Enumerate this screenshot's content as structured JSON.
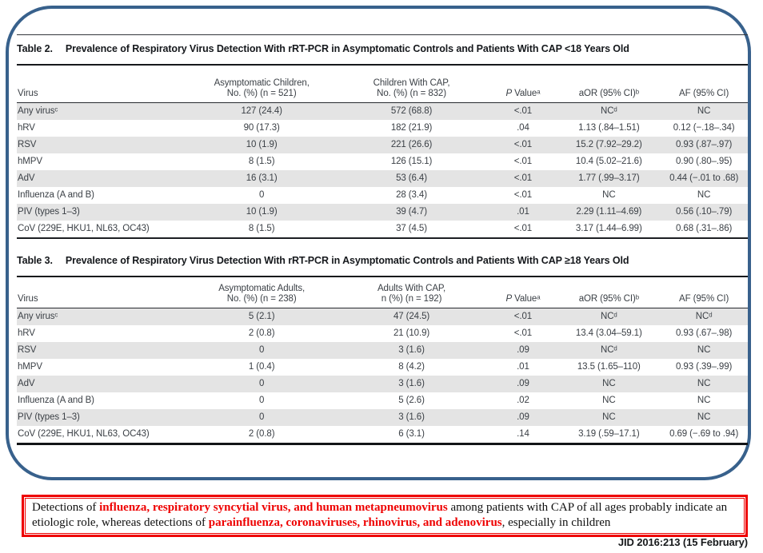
{
  "colors": {
    "frame_blue": "#38618c",
    "callout_red": "#ee0000",
    "row_stripe_gray": "#e4e4e4"
  },
  "tables": [
    {
      "label": "Table 2.",
      "title": "Prevalence of Respiratory Virus Detection With rRT-PCR in Asymptomatic Controls and Patients With CAP <18 Years Old",
      "columns": [
        {
          "l1": "",
          "l2": "Virus"
        },
        {
          "l1": "Asymptomatic Children,",
          "l2": "No. (%) (n = 521)"
        },
        {
          "l1": "Children With CAP,",
          "l2": "No. (%) (n = 832)"
        },
        {
          "l1": "",
          "l2": "P Valueᵃ"
        },
        {
          "l1": "",
          "l2": "aOR (95% CI)ᵇ"
        },
        {
          "l1": "",
          "l2": "AF (95% CI)"
        }
      ],
      "rows": [
        [
          "Any virusᶜ",
          "127 (24.4)",
          "572 (68.8)",
          "<.01",
          "NCᵈ",
          "NC"
        ],
        [
          "hRV",
          "90 (17.3)",
          "182 (21.9)",
          ".04",
          "1.13 (.84–1.51)",
          "0.12 (−.18–.34)"
        ],
        [
          "RSV",
          "10 (1.9)",
          "221 (26.6)",
          "<.01",
          "15.2 (7.92–29.2)",
          "0.93 (.87–.97)"
        ],
        [
          "hMPV",
          "8 (1.5)",
          "126 (15.1)",
          "<.01",
          "10.4 (5.02–21.6)",
          "0.90 (.80–.95)"
        ],
        [
          "AdV",
          "16 (3.1)",
          "53 (6.4)",
          "<.01",
          "1.77 (.99–3.17)",
          "0.44 (−.01 to .68)"
        ],
        [
          "Influenza (A and B)",
          "0",
          "28 (3.4)",
          "<.01",
          "NC",
          "NC"
        ],
        [
          "PIV (types 1–3)",
          "10 (1.9)",
          "39 (4.7)",
          ".01",
          "2.29 (1.11–4.69)",
          "0.56 (.10–.79)"
        ],
        [
          "CoV (229E, HKU1, NL63, OC43)",
          "8 (1.5)",
          "37 (4.5)",
          "<.01",
          "3.17 (1.44–6.99)",
          "0.68 (.31–.86)"
        ]
      ]
    },
    {
      "label": "Table 3.",
      "title": "Prevalence of Respiratory Virus Detection With rRT-PCR in Asymptomatic Controls and Patients With CAP ≥18 Years Old",
      "columns": [
        {
          "l1": "",
          "l2": "Virus"
        },
        {
          "l1": "Asymptomatic Adults,",
          "l2": "No. (%) (n = 238)"
        },
        {
          "l1": "Adults With CAP,",
          "l2": "n (%) (n = 192)"
        },
        {
          "l1": "",
          "l2": "P Valueᵃ"
        },
        {
          "l1": "",
          "l2": "aOR (95% CI)ᵇ"
        },
        {
          "l1": "",
          "l2": "AF (95% CI)"
        }
      ],
      "rows": [
        [
          "Any virusᶜ",
          "5 (2.1)",
          "47 (24.5)",
          "<.01",
          "NCᵈ",
          "NCᵈ"
        ],
        [
          "hRV",
          "2 (0.8)",
          "21 (10.9)",
          "<.01",
          "13.4 (3.04–59.1)",
          "0.93 (.67–.98)"
        ],
        [
          "RSV",
          "0",
          "3 (1.6)",
          ".09",
          "NCᵈ",
          "NC"
        ],
        [
          "hMPV",
          "1 (0.4)",
          "8 (4.2)",
          ".01",
          "13.5 (1.65–110)",
          "0.93 (.39–.99)"
        ],
        [
          "AdV",
          "0",
          "3 (1.6)",
          ".09",
          "NC",
          "NC"
        ],
        [
          "Influenza (A and B)",
          "0",
          "5 (2.6)",
          ".02",
          "NC",
          "NC"
        ],
        [
          "PIV (types 1–3)",
          "0",
          "3 (1.6)",
          ".09",
          "NC",
          "NC"
        ],
        [
          "CoV (229E, HKU1, NL63, OC43)",
          "2 (0.8)",
          "6 (3.1)",
          ".14",
          "3.19 (.59–17.1)",
          "0.69 (−.69 to .94)"
        ]
      ]
    }
  ],
  "callout": {
    "segments": [
      {
        "text": "Detections of ",
        "red": false
      },
      {
        "text": "influenza, respiratory syncytial virus, and human metapneumovirus",
        "red": true
      },
      {
        "text": " among patients with CAP of all ages probably indicate an etiologic role, whereas detections of ",
        "red": false
      },
      {
        "text": "parainfluenza, coronaviruses, rhinovirus, and adenovirus",
        "red": true
      },
      {
        "text": ", especially in children",
        "red": false
      }
    ]
  },
  "citation": "JID 2016:213 (15 February)"
}
